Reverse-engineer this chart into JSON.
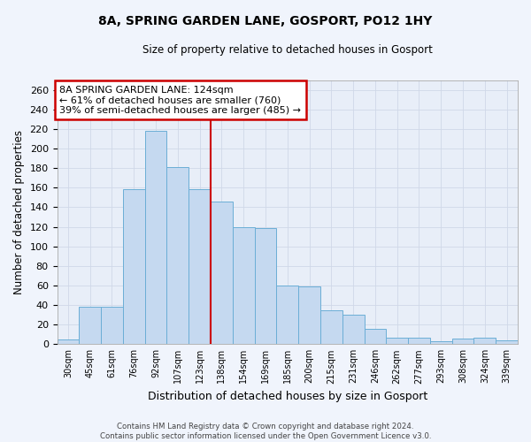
{
  "title1": "8A, SPRING GARDEN LANE, GOSPORT, PO12 1HY",
  "title2": "Size of property relative to detached houses in Gosport",
  "xlabel": "Distribution of detached houses by size in Gosport",
  "ylabel": "Number of detached properties",
  "categories": [
    "30sqm",
    "45sqm",
    "61sqm",
    "76sqm",
    "92sqm",
    "107sqm",
    "123sqm",
    "138sqm",
    "154sqm",
    "169sqm",
    "185sqm",
    "200sqm",
    "215sqm",
    "231sqm",
    "246sqm",
    "262sqm",
    "277sqm",
    "293sqm",
    "308sqm",
    "324sqm",
    "339sqm"
  ],
  "bar_heights": [
    5,
    38,
    38,
    158,
    218,
    181,
    158,
    146,
    120,
    119,
    60,
    59,
    35,
    30,
    16,
    7,
    7,
    3,
    6,
    7,
    4
  ],
  "bar_color": "#c5d9f0",
  "bar_edge_color": "#6baed6",
  "background_color": "#e8eef8",
  "grid_color": "#d0d8e8",
  "vline_color": "#cc0000",
  "annotation_text": "8A SPRING GARDEN LANE: 124sqm\n← 61% of detached houses are smaller (760)\n39% of semi-detached houses are larger (485) →",
  "annotation_box_color": "#ffffff",
  "annotation_box_edge": "#cc0000",
  "ylim": [
    0,
    270
  ],
  "yticks": [
    0,
    20,
    40,
    60,
    80,
    100,
    120,
    140,
    160,
    180,
    200,
    220,
    240,
    260
  ],
  "footer1": "Contains HM Land Registry data © Crown copyright and database right 2024.",
  "footer2": "Contains public sector information licensed under the Open Government Licence v3.0.",
  "fig_bg": "#f0f4fc"
}
